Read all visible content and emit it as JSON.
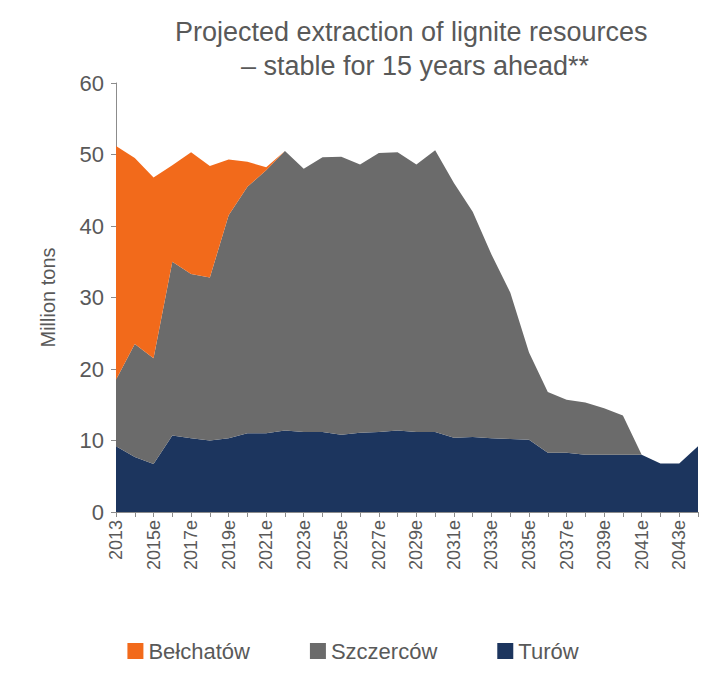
{
  "chart_data": {
    "type": "area",
    "title": "Projected extraction of lignite resources – stable for 15 years ahead**",
    "y_label": "Million tons",
    "categories": [
      "2013",
      null,
      "2015e",
      null,
      "2017e",
      null,
      "2019e",
      null,
      "2021e",
      null,
      "2023e",
      null,
      "2025e",
      null,
      "2027e",
      null,
      "2029e",
      null,
      "2031e",
      null,
      "2033e",
      null,
      "2035e",
      null,
      "2037e",
      null,
      "2039e",
      null,
      "2041e",
      null,
      "2043e",
      null
    ],
    "series": [
      {
        "name": "Bełchatów",
        "color": "#f26a1b",
        "values": [
          32.7,
          26.0,
          25.3,
          13.5,
          17.0,
          15.6,
          7.8,
          3.5,
          0.4,
          0,
          0,
          0,
          0,
          0,
          0,
          0,
          0,
          0,
          0,
          0,
          0,
          0,
          0,
          0,
          0,
          0,
          0,
          0,
          0,
          0,
          0,
          0
        ]
      },
      {
        "name": "Szczerców",
        "color": "#6b6b6b",
        "values": [
          9.3,
          15.8,
          14.8,
          24.3,
          23.0,
          22.8,
          31.2,
          34.5,
          36.8,
          39.1,
          36.8,
          38.4,
          38.9,
          37.5,
          39.0,
          38.9,
          37.4,
          39.4,
          35.6,
          31.5,
          25.7,
          20.5,
          12.2,
          8.5,
          7.4,
          7.3,
          6.5,
          5.5,
          0,
          0,
          0,
          0
        ]
      },
      {
        "name": "Turów",
        "color": "#1c355e",
        "values": [
          9.2,
          7.7,
          6.7,
          10.7,
          10.3,
          10.0,
          10.3,
          11.0,
          11.0,
          11.4,
          11.2,
          11.2,
          10.8,
          11.1,
          11.2,
          11.4,
          11.2,
          11.2,
          10.4,
          10.5,
          10.3,
          10.2,
          10.1,
          8.3,
          8.3,
          8.0,
          8.0,
          8.0,
          8.0,
          6.8,
          6.8,
          9.2
        ]
      }
    ],
    "ylim": [
      0,
      60
    ],
    "yticks": [
      0,
      10,
      20,
      30,
      40,
      50,
      60
    ],
    "stacked": true,
    "grid": false,
    "legend": "bottom"
  }
}
